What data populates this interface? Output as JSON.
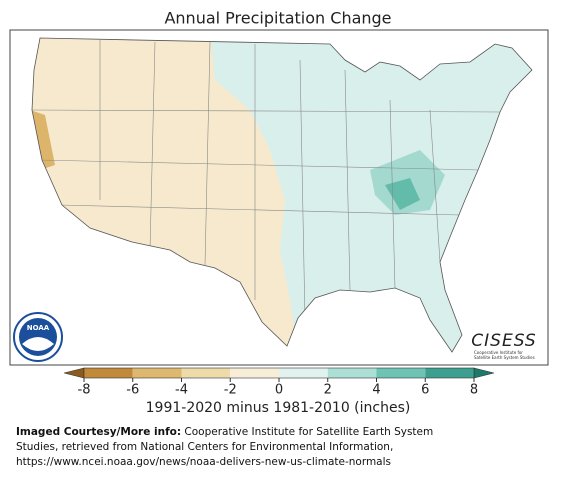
{
  "map": {
    "title": "Annual Precipitation Change",
    "legend": {
      "ticks": [
        -8,
        -6,
        -4,
        -2,
        0,
        2,
        4,
        6,
        8
      ],
      "colors": [
        "#c08a3a",
        "#ddb86e",
        "#eedbaa",
        "#f8eed8",
        "#e2f3ef",
        "#acdfd5",
        "#6fc3b4",
        "#3c9f8f"
      ],
      "under_color": "#8c5a1e",
      "over_color": "#1d7a6b",
      "label": "1991-2020 minus 1981-2010 (inches)"
    },
    "logos": {
      "noaa": "NOAA",
      "cisess": "CISESS",
      "cisess_caption": [
        "Cooperative Institute for",
        "Satellite Earth System Studies"
      ]
    },
    "credit": {
      "label": "Imaged Courtesy/More info:",
      "lines": [
        "Cooperative Institute for Satellite Earth System",
        "Studies, retrieved from National Centers for Environmental Information,",
        "https://www.ncei.noaa.gov/news/noaa-delivers-new-us-climate-normals"
      ]
    }
  }
}
